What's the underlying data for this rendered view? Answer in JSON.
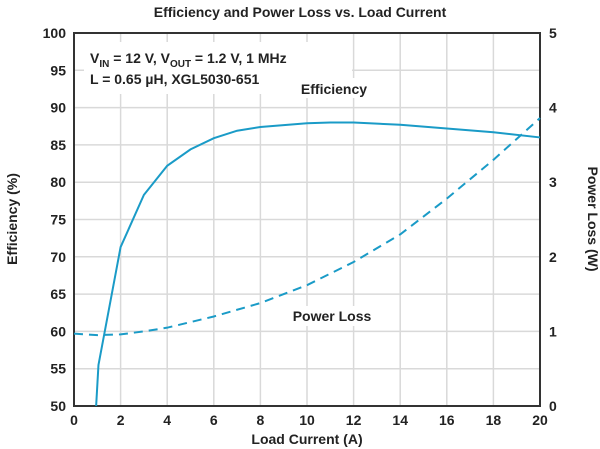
{
  "chart_data": {
    "type": "line",
    "title": "Efficiency and Power Loss vs. Load Current",
    "xlabel": "Load Current (A)",
    "ylabel": "Efficiency (%)",
    "y2label": "Power Loss (W)",
    "xlim": [
      0,
      20
    ],
    "ylim": [
      50,
      100
    ],
    "y2lim": [
      0,
      5
    ],
    "xticks": [
      0,
      2,
      4,
      6,
      8,
      10,
      12,
      14,
      16,
      18,
      20
    ],
    "yticks": [
      50,
      55,
      60,
      65,
      70,
      75,
      80,
      85,
      90,
      95,
      100
    ],
    "y2ticks": [
      0,
      1,
      2,
      3,
      4,
      5
    ],
    "grid": true,
    "annotation": {
      "line1_parts": [
        "V",
        "IN",
        " = 12 V, V",
        "OUT",
        " = 1.2 V, 1 MHz"
      ],
      "line2": "L = 0.65 µH, XGL5030-651"
    },
    "series": [
      {
        "name": "Efficiency",
        "axis": "left",
        "style": "solid",
        "color": "#1a9bc7",
        "x": [
          0.95,
          1.05,
          2,
          3,
          4,
          5,
          6,
          7,
          8,
          10,
          11,
          12,
          14,
          16,
          18,
          20
        ],
        "y": [
          50,
          55.5,
          71.3,
          78.3,
          82.2,
          84.4,
          85.9,
          86.9,
          87.4,
          87.9,
          88,
          88,
          87.7,
          87.2,
          86.7,
          86
        ]
      },
      {
        "name": "Power Loss",
        "axis": "right",
        "style": "dashed",
        "color": "#1a9bc7",
        "x": [
          0,
          1,
          2,
          3,
          4,
          6,
          8,
          10,
          12,
          14,
          16,
          18,
          20
        ],
        "y": [
          0.97,
          0.95,
          0.96,
          1.0,
          1.05,
          1.2,
          1.38,
          1.62,
          1.93,
          2.3,
          2.78,
          3.3,
          3.86
        ]
      }
    ]
  }
}
